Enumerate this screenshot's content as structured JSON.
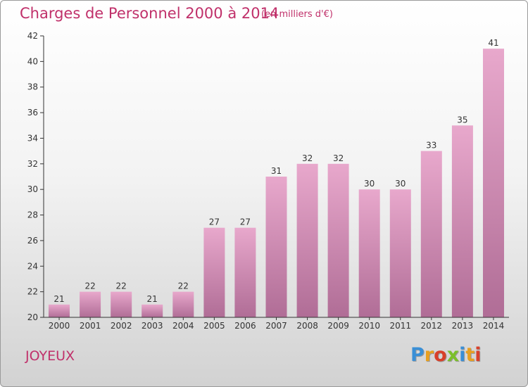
{
  "header": {
    "title": "Charges de Personnel 2000 à 2014",
    "subtitle": "(en milliers d'€)"
  },
  "footer": {
    "town": "JOYEUX",
    "logo": {
      "text": "Proxiti",
      "letter_colors": [
        "#3a8fd6",
        "#e8a020",
        "#d8402a",
        "#7bbf2a",
        "#3a8fd6",
        "#e8a020",
        "#d8402a"
      ]
    }
  },
  "colors": {
    "title": "#c0306a",
    "bar_top": "#e8a8cc",
    "bar_bottom": "#b06d96",
    "axis": "#333333"
  },
  "chart_data": {
    "type": "bar",
    "title": "Charges de Personnel 2000 à 2014",
    "subtitle": "(en milliers d'€)",
    "xlabel": "",
    "ylabel": "",
    "categories": [
      "2000",
      "2001",
      "2002",
      "2003",
      "2004",
      "2005",
      "2006",
      "2007",
      "2008",
      "2009",
      "2010",
      "2011",
      "2012",
      "2013",
      "2014"
    ],
    "values": [
      21,
      22,
      22,
      21,
      22,
      27,
      27,
      31,
      32,
      32,
      30,
      30,
      33,
      35,
      41
    ],
    "ylim": [
      20,
      42
    ],
    "yticks": [
      20,
      22,
      24,
      26,
      28,
      30,
      32,
      34,
      36,
      38,
      40,
      42
    ],
    "grid": false,
    "legend": "none"
  }
}
